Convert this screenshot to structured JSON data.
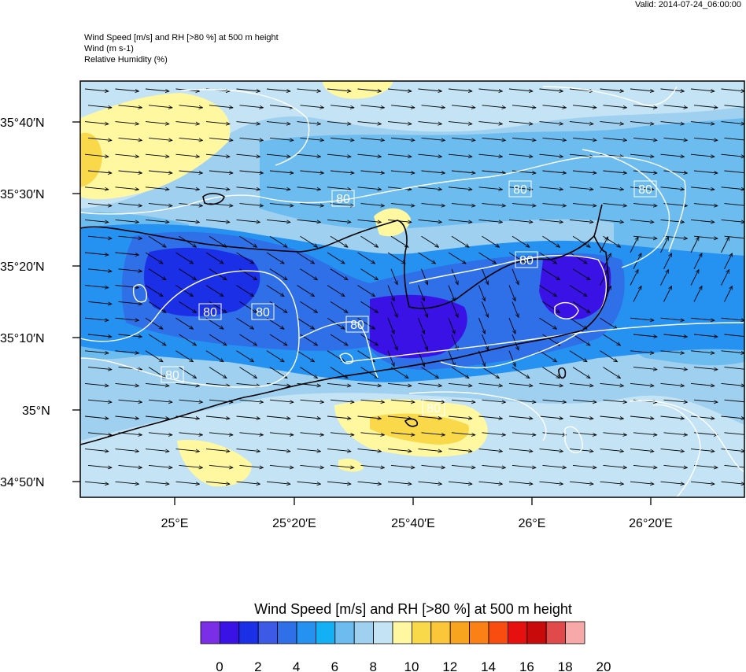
{
  "valid": "Valid: 2014-07-24_06:00:00",
  "header": {
    "line1": "Wind Speed [m/s] and RH [>80 %] at 500 m height",
    "line2": "Wind   (m s-1)",
    "line3": "Relative Humidity   (%)"
  },
  "map": {
    "lat_labels": [
      "35°40′N",
      "35°30′N",
      "35°20′N",
      "35°10′N",
      "35°N",
      "34°50′N"
    ],
    "lon_labels": [
      "25°E",
      "25°20′E",
      "25°40′E",
      "26°E",
      "26°20′E"
    ],
    "contour_label": "80",
    "colors": {
      "frame": "#000000",
      "coast": "#000000",
      "contour": "#ffffff"
    }
  },
  "colorbar": {
    "title": "Wind Speed [m/s] and RH [>80 %] at 500 m height",
    "labels": [
      "0",
      "2",
      "4",
      "6",
      "8",
      "10",
      "12",
      "14",
      "16",
      "18",
      "20"
    ],
    "colors": [
      "#7a2ee6",
      "#3a12e6",
      "#1a2fe6",
      "#3d5ae6",
      "#2f6fe8",
      "#2591f0",
      "#14b0f5",
      "#6cbcf0",
      "#9fd0f0",
      "#c4e4f5",
      "#fff8a0",
      "#f9d94a",
      "#fbc63a",
      "#f9a41e",
      "#fb8016",
      "#f84c10",
      "#e61010",
      "#c80a0a",
      "#e04a4a",
      "#f7a8a8"
    ]
  }
}
